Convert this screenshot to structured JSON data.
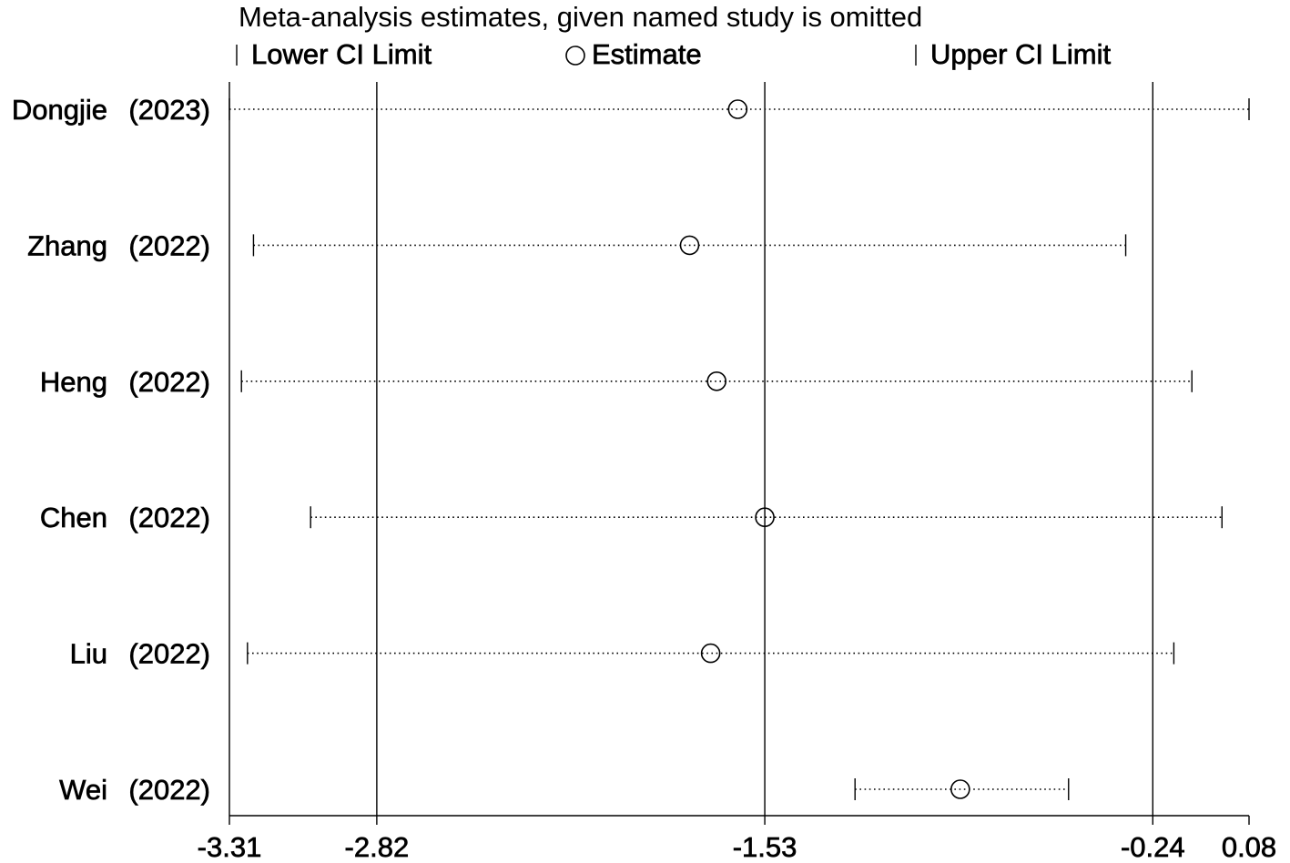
{
  "chart_data": {
    "type": "scatter",
    "title": "Meta-analysis estimates, given named study is omitted",
    "legend": {
      "position": "top",
      "lower_label": "Lower CI Limit",
      "estimate_label": "Estimate",
      "upper_label": "Upper CI Limit"
    },
    "xlim": [
      -3.31,
      0.08
    ],
    "x_ticks": [
      -3.31,
      -2.82,
      -1.53,
      -0.24,
      0.08
    ],
    "x_tick_labels": [
      "-3.31",
      "-2.82",
      "-1.53",
      "-0.24",
      "0.08"
    ],
    "reference_lines": [
      -2.82,
      -1.53,
      -0.24
    ],
    "studies": [
      {
        "name": "Dongjie",
        "year": "(2023)",
        "lower": -3.31,
        "estimate": -1.62,
        "upper": 0.08
      },
      {
        "name": "Zhang",
        "year": "(2022)",
        "lower": -3.23,
        "estimate": -1.78,
        "upper": -0.33
      },
      {
        "name": "Heng",
        "year": "(2022)",
        "lower": -3.27,
        "estimate": -1.69,
        "upper": -0.11
      },
      {
        "name": "Chen",
        "year": "(2022)",
        "lower": -3.04,
        "estimate": -1.53,
        "upper": -0.01
      },
      {
        "name": "Liu",
        "year": "(2022)",
        "lower": -3.25,
        "estimate": -1.71,
        "upper": -0.17
      },
      {
        "name": "Wei",
        "year": "(2022)",
        "lower": -1.23,
        "estimate": -0.88,
        "upper": -0.52
      }
    ],
    "colors": {
      "marks": "#000000",
      "background": "#ffffff"
    }
  }
}
